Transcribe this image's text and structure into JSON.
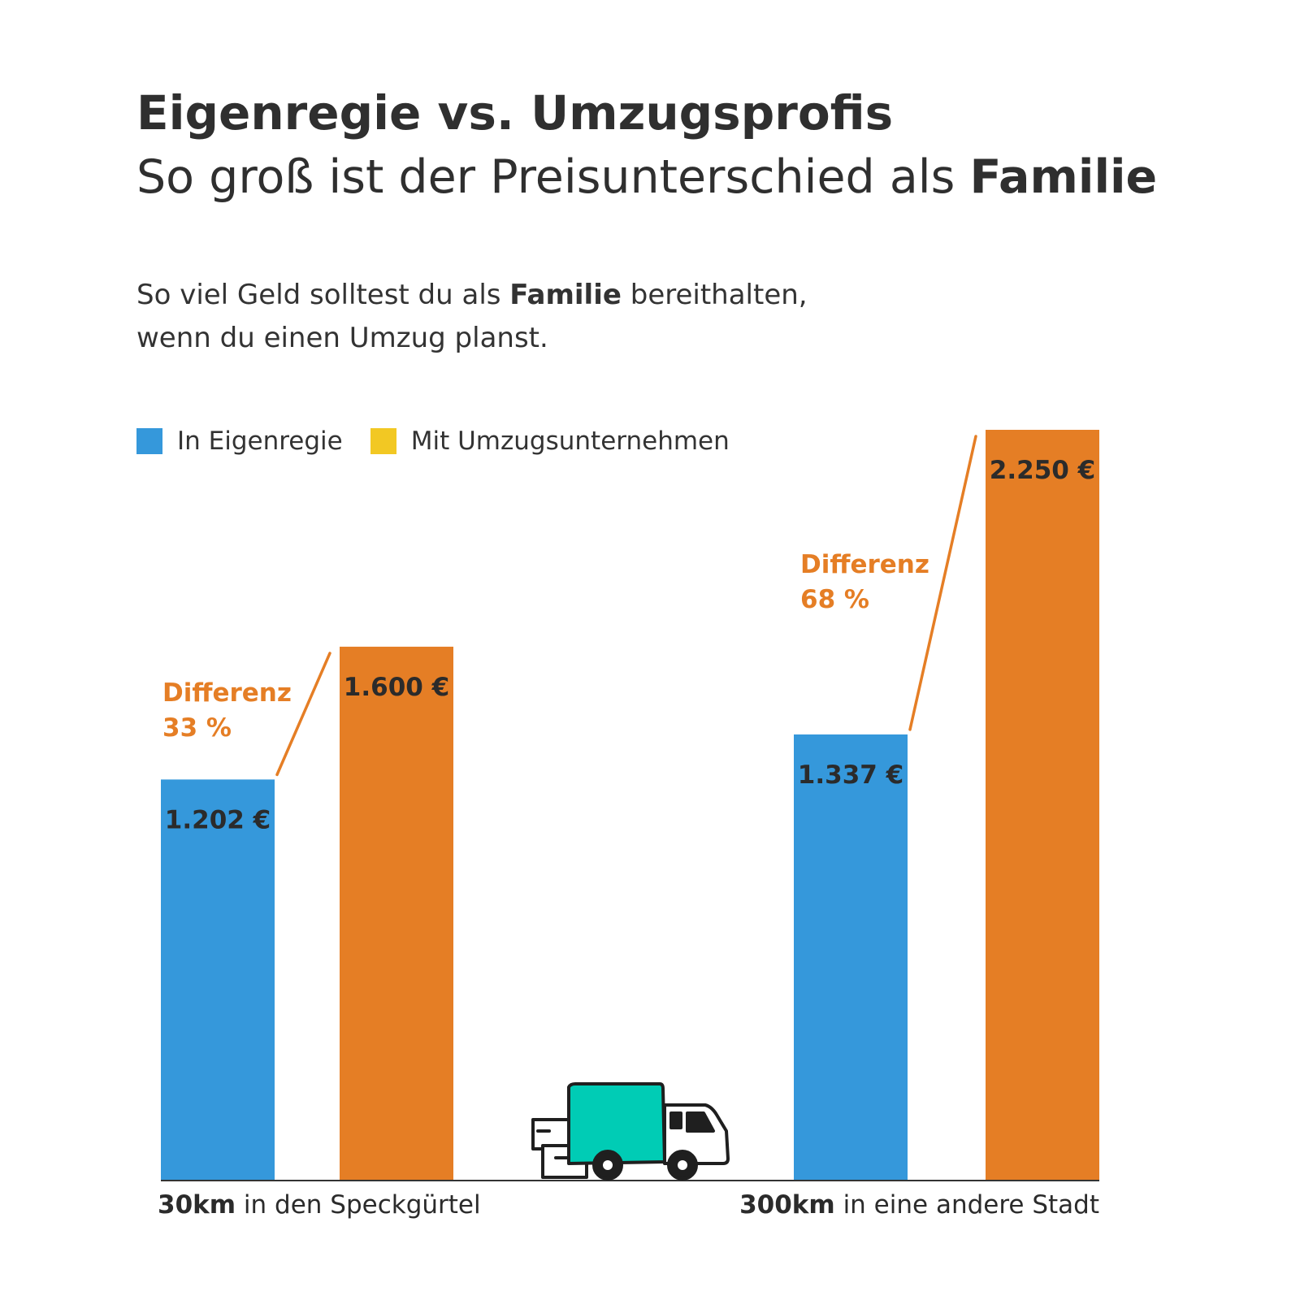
{
  "header": {
    "title": "Eigenregie vs. Umzugsprofis",
    "subtitle_prefix": "So groß ist der Preisunterschied als ",
    "subtitle_bold": "Familie"
  },
  "intro": {
    "line1_prefix": "So viel Geld solltest du als ",
    "line1_bold": "Familie",
    "line1_suffix": " bereithalten,",
    "line2": "wenn du einen Umzug planst."
  },
  "legend": [
    {
      "label": "In Eigenregie",
      "color": "#3598db"
    },
    {
      "label": "Mit Umzugsunternehmen",
      "color": "#f2c823"
    }
  ],
  "colors": {
    "eigenregie_bar": "#3598db",
    "umzug_bar": "#e57e25",
    "difference_text": "#e57e25",
    "truck_body": "#00ccb5"
  },
  "truck_icon": "moving-truck-icon",
  "chart_data": {
    "type": "bar",
    "categories": [
      "30km in den Speckgürtel",
      "300km in eine andere Stadt"
    ],
    "category_labels": [
      {
        "bold": "30km",
        "rest": " in den Speckgürtel"
      },
      {
        "bold": "300km",
        "rest": " in eine andere Stadt"
      }
    ],
    "series": [
      {
        "name": "In Eigenregie",
        "values": [
          1202,
          1337
        ],
        "labels": [
          "1.202 €",
          "1.337 €"
        ]
      },
      {
        "name": "Mit Umzugsunternehmen",
        "values": [
          1600,
          2250
        ],
        "labels": [
          "1.600 €",
          "2.250 €"
        ]
      }
    ],
    "annotations": [
      {
        "category": 0,
        "line1": "Differenz",
        "line2": "33 %"
      },
      {
        "category": 1,
        "line1": "Differenz",
        "line2": "68 %"
      }
    ],
    "ylim": [
      0,
      2250
    ],
    "grid": false,
    "legend_position": "top-left"
  }
}
